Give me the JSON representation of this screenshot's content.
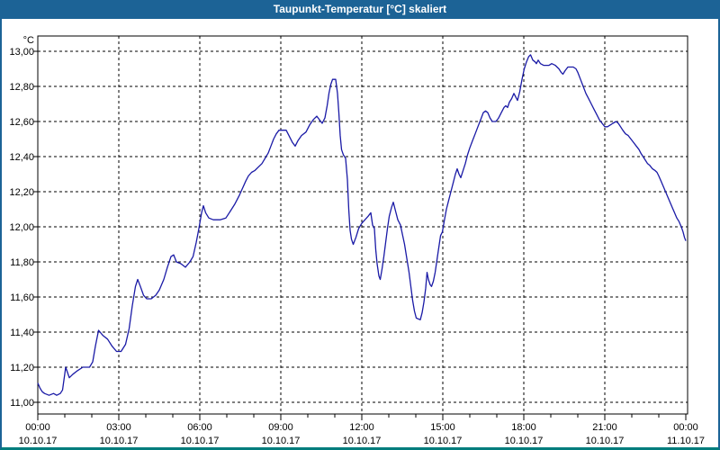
{
  "window": {
    "title": "Taupunkt-Temperatur [°C] skaliert",
    "colors": {
      "title_bar": "#1c6396",
      "frame_side": "#1c6396",
      "frame_bottom": "#007d7d"
    }
  },
  "chart_data": {
    "type": "line",
    "title": "Taupunkt-Temperatur [°C] skaliert",
    "grid": "dashed-black",
    "legend": "none",
    "line_color": "#1a1aa6",
    "y_axis": {
      "unit": "°C",
      "range_shown": [
        10.93,
        13.09
      ],
      "ticks": [
        {
          "label": "13,00",
          "value": 13.0
        },
        {
          "label": "12,80",
          "value": 12.8
        },
        {
          "label": "12,60",
          "value": 12.6
        },
        {
          "label": "12,40",
          "value": 12.4
        },
        {
          "label": "12,20",
          "value": 12.2
        },
        {
          "label": "12,00",
          "value": 12.0
        },
        {
          "label": "11,80",
          "value": 11.8
        },
        {
          "label": "11,60",
          "value": 11.6
        },
        {
          "label": "11,40",
          "value": 11.4
        },
        {
          "label": "11,20",
          "value": 11.2
        },
        {
          "label": "11,00",
          "value": 11.0
        }
      ]
    },
    "x_axis": {
      "minor_tick_every_hours": 1,
      "major_tick_every_hours": 3,
      "ticks": [
        {
          "hour": 0,
          "time": "00:00",
          "date": "10.10.17"
        },
        {
          "hour": 3,
          "time": "03:00",
          "date": "10.10.17"
        },
        {
          "hour": 6,
          "time": "06:00",
          "date": "10.10.17"
        },
        {
          "hour": 9,
          "time": "09:00",
          "date": "10.10.17"
        },
        {
          "hour": 12,
          "time": "12:00",
          "date": "10.10.17"
        },
        {
          "hour": 15,
          "time": "15:00",
          "date": "10.10.17"
        },
        {
          "hour": 18,
          "time": "18:00",
          "date": "10.10.17"
        },
        {
          "hour": 21,
          "time": "21:00",
          "date": "10.10.17"
        },
        {
          "hour": 24,
          "time": "00:00",
          "date": "11.10.17"
        }
      ]
    },
    "series": [
      {
        "name": "Taupunkt-Temperatur",
        "points_minutes_degC": [
          [
            0,
            11.11
          ],
          [
            5,
            11.08
          ],
          [
            10,
            11.06
          ],
          [
            15,
            11.05
          ],
          [
            25,
            11.04
          ],
          [
            35,
            11.05
          ],
          [
            42,
            11.04
          ],
          [
            50,
            11.05
          ],
          [
            55,
            11.07
          ],
          [
            62,
            11.2
          ],
          [
            70,
            11.14
          ],
          [
            78,
            11.16
          ],
          [
            88,
            11.18
          ],
          [
            100,
            11.2
          ],
          [
            115,
            11.2
          ],
          [
            122,
            11.23
          ],
          [
            128,
            11.32
          ],
          [
            135,
            11.41
          ],
          [
            145,
            11.38
          ],
          [
            155,
            11.36
          ],
          [
            165,
            11.32
          ],
          [
            175,
            11.29
          ],
          [
            185,
            11.29
          ],
          [
            195,
            11.33
          ],
          [
            203,
            11.42
          ],
          [
            210,
            11.55
          ],
          [
            217,
            11.66
          ],
          [
            222,
            11.7
          ],
          [
            228,
            11.66
          ],
          [
            235,
            11.61
          ],
          [
            242,
            11.59
          ],
          [
            252,
            11.59
          ],
          [
            262,
            11.61
          ],
          [
            270,
            11.64
          ],
          [
            280,
            11.7
          ],
          [
            288,
            11.77
          ],
          [
            296,
            11.83
          ],
          [
            302,
            11.84
          ],
          [
            308,
            11.8
          ],
          [
            318,
            11.79
          ],
          [
            328,
            11.77
          ],
          [
            338,
            11.8
          ],
          [
            345,
            11.83
          ],
          [
            352,
            11.91
          ],
          [
            358,
            11.99
          ],
          [
            364,
            12.08
          ],
          [
            368,
            12.12
          ],
          [
            373,
            12.08
          ],
          [
            380,
            12.05
          ],
          [
            390,
            12.04
          ],
          [
            405,
            12.04
          ],
          [
            418,
            12.05
          ],
          [
            428,
            12.09
          ],
          [
            438,
            12.13
          ],
          [
            448,
            12.18
          ],
          [
            455,
            12.22
          ],
          [
            462,
            12.26
          ],
          [
            468,
            12.29
          ],
          [
            475,
            12.31
          ],
          [
            482,
            12.32
          ],
          [
            490,
            12.34
          ],
          [
            498,
            12.36
          ],
          [
            505,
            12.39
          ],
          [
            512,
            12.42
          ],
          [
            518,
            12.46
          ],
          [
            524,
            12.5
          ],
          [
            530,
            12.53
          ],
          [
            536,
            12.55
          ],
          [
            552,
            12.55
          ],
          [
            558,
            12.52
          ],
          [
            566,
            12.48
          ],
          [
            572,
            12.46
          ],
          [
            578,
            12.49
          ],
          [
            586,
            12.52
          ],
          [
            596,
            12.54
          ],
          [
            604,
            12.58
          ],
          [
            612,
            12.61
          ],
          [
            620,
            12.63
          ],
          [
            626,
            12.61
          ],
          [
            632,
            12.59
          ],
          [
            638,
            12.62
          ],
          [
            643,
            12.69
          ],
          [
            647,
            12.76
          ],
          [
            651,
            12.81
          ],
          [
            655,
            12.84
          ],
          [
            662,
            12.84
          ],
          [
            666,
            12.76
          ],
          [
            669,
            12.65
          ],
          [
            672,
            12.52
          ],
          [
            675,
            12.44
          ],
          [
            679,
            12.41
          ],
          [
            684,
            12.39
          ],
          [
            688,
            12.27
          ],
          [
            691,
            12.1
          ],
          [
            694,
            11.98
          ],
          [
            697,
            11.93
          ],
          [
            701,
            11.9
          ],
          [
            707,
            11.94
          ],
          [
            713,
            11.99
          ],
          [
            720,
            12.02
          ],
          [
            727,
            12.04
          ],
          [
            734,
            12.06
          ],
          [
            740,
            12.08
          ],
          [
            744,
            12.01
          ],
          [
            748,
            11.99
          ],
          [
            751,
            11.87
          ],
          [
            754,
            11.79
          ],
          [
            758,
            11.72
          ],
          [
            761,
            11.7
          ],
          [
            765,
            11.76
          ],
          [
            769,
            11.83
          ],
          [
            773,
            11.91
          ],
          [
            777,
            11.99
          ],
          [
            781,
            12.06
          ],
          [
            786,
            12.11
          ],
          [
            790,
            12.14
          ],
          [
            795,
            12.09
          ],
          [
            800,
            12.04
          ],
          [
            806,
            12.01
          ],
          [
            810,
            11.96
          ],
          [
            815,
            11.9
          ],
          [
            820,
            11.82
          ],
          [
            825,
            11.74
          ],
          [
            829,
            11.66
          ],
          [
            833,
            11.58
          ],
          [
            837,
            11.52
          ],
          [
            841,
            11.48
          ],
          [
            850,
            11.47
          ],
          [
            854,
            11.51
          ],
          [
            858,
            11.57
          ],
          [
            862,
            11.65
          ],
          [
            865,
            11.74
          ],
          [
            868,
            11.7
          ],
          [
            872,
            11.67
          ],
          [
            875,
            11.66
          ],
          [
            879,
            11.69
          ],
          [
            883,
            11.74
          ],
          [
            887,
            11.81
          ],
          [
            891,
            11.88
          ],
          [
            895,
            11.95
          ],
          [
            899,
            11.97
          ],
          [
            903,
            12.03
          ],
          [
            908,
            12.1
          ],
          [
            913,
            12.15
          ],
          [
            918,
            12.2
          ],
          [
            923,
            12.25
          ],
          [
            928,
            12.3
          ],
          [
            932,
            12.33
          ],
          [
            936,
            12.3
          ],
          [
            940,
            12.28
          ],
          [
            945,
            12.32
          ],
          [
            950,
            12.36
          ],
          [
            955,
            12.41
          ],
          [
            960,
            12.45
          ],
          [
            966,
            12.49
          ],
          [
            972,
            12.53
          ],
          [
            978,
            12.57
          ],
          [
            984,
            12.61
          ],
          [
            990,
            12.65
          ],
          [
            995,
            12.66
          ],
          [
            1000,
            12.65
          ],
          [
            1005,
            12.62
          ],
          [
            1010,
            12.6
          ],
          [
            1018,
            12.6
          ],
          [
            1024,
            12.62
          ],
          [
            1030,
            12.65
          ],
          [
            1036,
            12.68
          ],
          [
            1040,
            12.69
          ],
          [
            1044,
            12.68
          ],
          [
            1048,
            12.71
          ],
          [
            1053,
            12.73
          ],
          [
            1058,
            12.76
          ],
          [
            1062,
            12.74
          ],
          [
            1066,
            12.72
          ],
          [
            1071,
            12.77
          ],
          [
            1076,
            12.84
          ],
          [
            1081,
            12.9
          ],
          [
            1086,
            12.94
          ],
          [
            1091,
            12.97
          ],
          [
            1095,
            12.98
          ],
          [
            1100,
            12.95
          ],
          [
            1105,
            12.94
          ],
          [
            1108,
            12.93
          ],
          [
            1112,
            12.95
          ],
          [
            1117,
            12.93
          ],
          [
            1124,
            12.92
          ],
          [
            1136,
            12.92
          ],
          [
            1142,
            12.93
          ],
          [
            1150,
            12.92
          ],
          [
            1158,
            12.9
          ],
          [
            1163,
            12.88
          ],
          [
            1167,
            12.87
          ],
          [
            1172,
            12.89
          ],
          [
            1178,
            12.91
          ],
          [
            1190,
            12.91
          ],
          [
            1196,
            12.9
          ],
          [
            1200,
            12.88
          ],
          [
            1206,
            12.84
          ],
          [
            1212,
            12.8
          ],
          [
            1218,
            12.76
          ],
          [
            1224,
            12.73
          ],
          [
            1230,
            12.7
          ],
          [
            1236,
            12.67
          ],
          [
            1242,
            12.64
          ],
          [
            1248,
            12.61
          ],
          [
            1254,
            12.59
          ],
          [
            1260,
            12.57
          ],
          [
            1266,
            12.57
          ],
          [
            1272,
            12.58
          ],
          [
            1278,
            12.59
          ],
          [
            1285,
            12.6
          ],
          [
            1290,
            12.59
          ],
          [
            1295,
            12.57
          ],
          [
            1300,
            12.55
          ],
          [
            1306,
            12.53
          ],
          [
            1312,
            12.52
          ],
          [
            1318,
            12.5
          ],
          [
            1324,
            12.48
          ],
          [
            1330,
            12.46
          ],
          [
            1336,
            12.44
          ],
          [
            1340,
            12.42
          ],
          [
            1345,
            12.4
          ],
          [
            1350,
            12.38
          ],
          [
            1355,
            12.36
          ],
          [
            1360,
            12.35
          ],
          [
            1366,
            12.33
          ],
          [
            1372,
            12.32
          ],
          [
            1376,
            12.31
          ],
          [
            1380,
            12.29
          ],
          [
            1385,
            12.26
          ],
          [
            1390,
            12.23
          ],
          [
            1395,
            12.2
          ],
          [
            1400,
            12.17
          ],
          [
            1405,
            12.14
          ],
          [
            1410,
            12.11
          ],
          [
            1415,
            12.08
          ],
          [
            1420,
            12.05
          ],
          [
            1425,
            12.03
          ],
          [
            1430,
            12.0
          ],
          [
            1434,
            11.97
          ],
          [
            1437,
            11.94
          ],
          [
            1440,
            11.92
          ]
        ]
      }
    ]
  }
}
